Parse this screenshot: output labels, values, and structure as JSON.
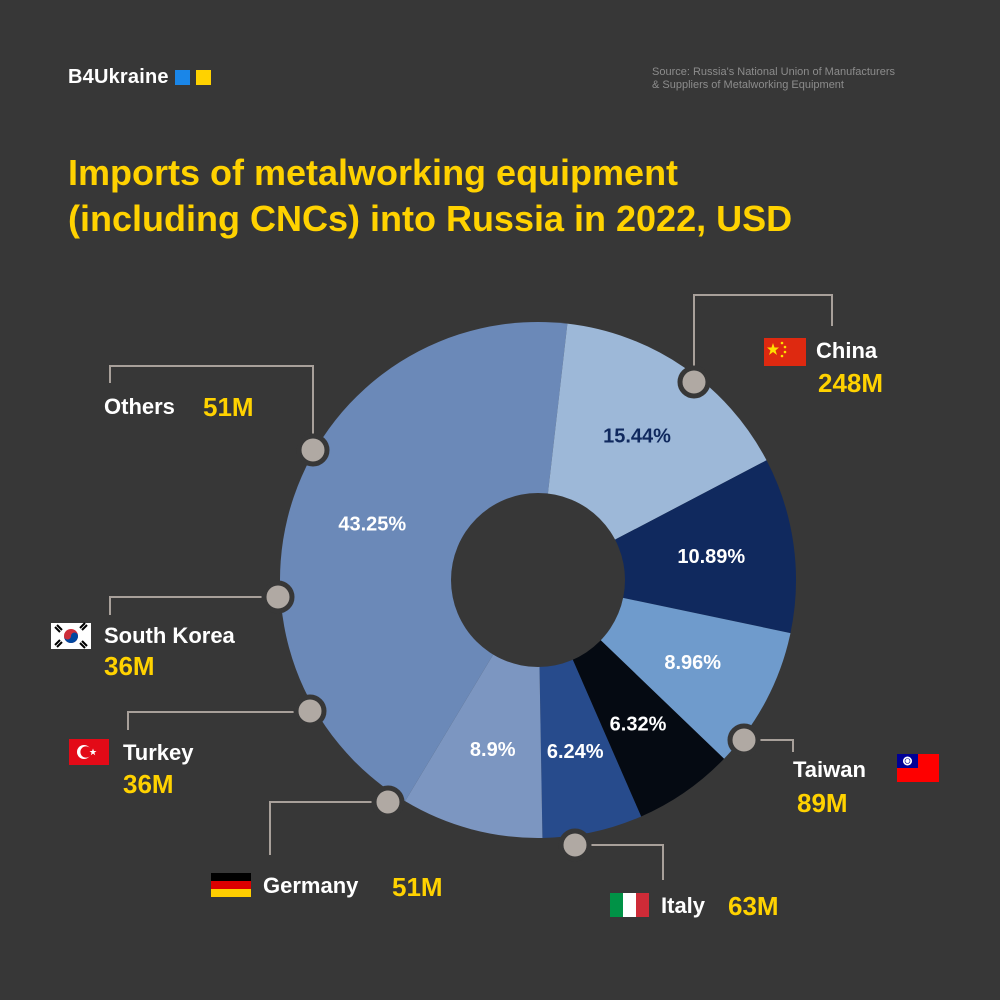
{
  "brand": {
    "name": "B4Ukraine",
    "square_colors": [
      "#1a86e8",
      "#ffd200"
    ]
  },
  "source": {
    "line1": "Source: Russia's National Union of Manufacturers",
    "line2": "& Suppliers of Metalworking Equipment"
  },
  "title": {
    "line1": "Imports of metalworking equipment",
    "line2": "(including CNCs) into Russia in 2022, USD"
  },
  "colors": {
    "background": "#373737",
    "accent": "#ffd200",
    "text": "#ffffff",
    "leader": "#a8a09a",
    "marker": "#b0a9a3"
  },
  "chart_data": {
    "type": "pie",
    "variant": "donut",
    "categories": [
      "China",
      "Taiwan",
      "Italy",
      "Germany",
      "Turkey",
      "South Korea",
      "Others"
    ],
    "values": [
      248,
      89,
      63,
      51,
      36,
      36,
      51
    ],
    "value_labels": [
      "248M",
      "89M",
      "63M",
      "51M",
      "36M",
      "36M",
      "51M"
    ],
    "percent_labels": [
      "43.25%",
      "15.44%",
      "10.89%",
      "8.96%",
      "6.32%",
      "6.24%",
      "8.9%"
    ],
    "percents": [
      43.25,
      15.44,
      10.89,
      8.96,
      6.32,
      6.24,
      8.9
    ],
    "slice_colors": [
      "#6b89b8",
      "#9db8d8",
      "#10295e",
      "#6f9bcc",
      "#050a12",
      "#274b8c",
      "#7c96c1"
    ],
    "percent_label_colors": [
      "#ffffff",
      "#10295e",
      "#ffffff",
      "#ffffff",
      "#ffffff",
      "#ffffff",
      "#ffffff"
    ],
    "flags": [
      "china-flag-icon",
      "taiwan-flag-icon",
      "italy-flag-icon",
      "germany-flag-icon",
      "turkey-flag-icon",
      "south-korea-flag-icon",
      "none"
    ]
  }
}
